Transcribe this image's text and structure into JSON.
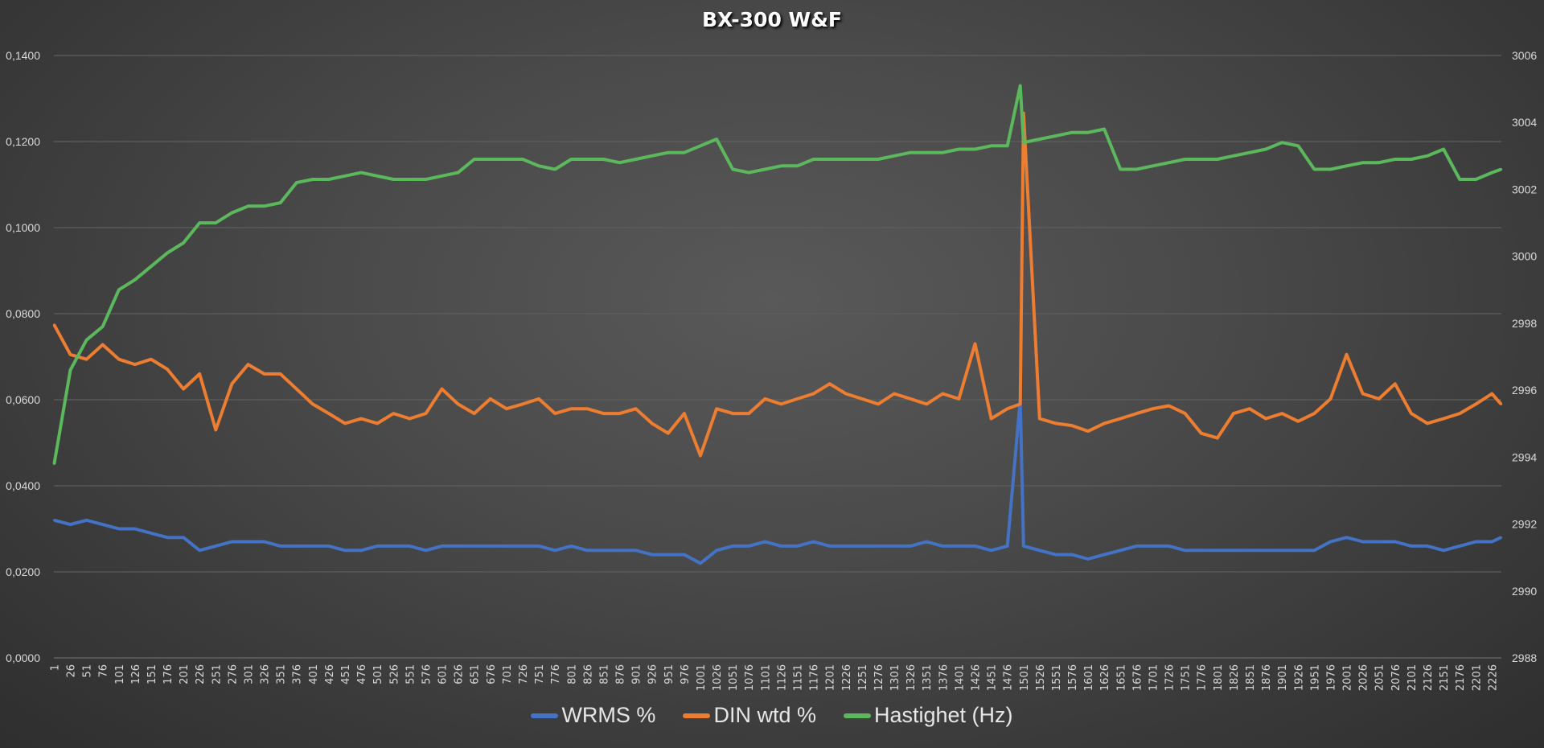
{
  "chart_data": {
    "type": "line",
    "title": "BX-300 W&F",
    "xlabel": "",
    "ylabel": "",
    "y_left": {
      "min": 0,
      "max": 0.14,
      "step": 0.02,
      "tick_labels": [
        "0,0000",
        "0,0200",
        "0,0400",
        "0,0600",
        "0,0800",
        "0,1000",
        "0,1200",
        "0,1400"
      ]
    },
    "y_right": {
      "min": 2988,
      "max": 3006,
      "step": 2,
      "tick_labels": [
        "2988",
        "2990",
        "2992",
        "2994",
        "2996",
        "2998",
        "3000",
        "3002",
        "3004",
        "3006"
      ]
    },
    "x_max": 2240,
    "x_tick_labels": [
      "1",
      "26",
      "51",
      "76",
      "101",
      "126",
      "151",
      "176",
      "201",
      "226",
      "251",
      "276",
      "301",
      "326",
      "351",
      "376",
      "401",
      "426",
      "451",
      "476",
      "501",
      "526",
      "551",
      "576",
      "601",
      "626",
      "651",
      "676",
      "701",
      "726",
      "751",
      "776",
      "801",
      "826",
      "851",
      "876",
      "901",
      "926",
      "951",
      "976",
      "1001",
      "1026",
      "1051",
      "1076",
      "1101",
      "1126",
      "1151",
      "1176",
      "1201",
      "1226",
      "1251",
      "1276",
      "1301",
      "1326",
      "1351",
      "1376",
      "1401",
      "1426",
      "1451",
      "1476",
      "1501",
      "1526",
      "1551",
      "1576",
      "1601",
      "1626",
      "1651",
      "1676",
      "1701",
      "1726",
      "1751",
      "1776",
      "1801",
      "1826",
      "1851",
      "1876",
      "1901",
      "1926",
      "1951",
      "1976",
      "2001",
      "2026",
      "2051",
      "2076",
      "2101",
      "2126",
      "2151",
      "2176",
      "2201",
      "2226"
    ],
    "grid": true,
    "legend_position": "bottom",
    "x": [
      1,
      26,
      51,
      76,
      101,
      126,
      151,
      176,
      201,
      226,
      251,
      276,
      301,
      326,
      351,
      376,
      401,
      426,
      451,
      476,
      501,
      526,
      551,
      576,
      601,
      626,
      651,
      676,
      701,
      726,
      751,
      776,
      801,
      826,
      851,
      876,
      901,
      926,
      951,
      976,
      1001,
      1026,
      1051,
      1076,
      1101,
      1126,
      1151,
      1176,
      1201,
      1226,
      1251,
      1276,
      1301,
      1326,
      1351,
      1376,
      1401,
      1426,
      1451,
      1476,
      1496,
      1501,
      1526,
      1551,
      1576,
      1601,
      1626,
      1651,
      1676,
      1701,
      1726,
      1751,
      1776,
      1801,
      1826,
      1851,
      1876,
      1901,
      1926,
      1951,
      1976,
      2001,
      2026,
      2051,
      2076,
      2101,
      2126,
      2151,
      2176,
      2201,
      2226,
      2240
    ],
    "series": [
      {
        "name": "WRMS %",
        "axis": "left",
        "color": "#4472c4",
        "values": [
          0.032,
          0.031,
          0.032,
          0.031,
          0.03,
          0.03,
          0.029,
          0.028,
          0.028,
          0.025,
          0.026,
          0.027,
          0.027,
          0.027,
          0.026,
          0.026,
          0.026,
          0.026,
          0.025,
          0.025,
          0.026,
          0.026,
          0.026,
          0.025,
          0.026,
          0.026,
          0.026,
          0.026,
          0.026,
          0.026,
          0.026,
          0.025,
          0.026,
          0.025,
          0.025,
          0.025,
          0.025,
          0.024,
          0.024,
          0.024,
          0.022,
          0.025,
          0.026,
          0.026,
          0.027,
          0.026,
          0.026,
          0.027,
          0.026,
          0.026,
          0.026,
          0.026,
          0.026,
          0.026,
          0.027,
          0.026,
          0.026,
          0.026,
          0.025,
          0.026,
          0.06,
          0.026,
          0.025,
          0.024,
          0.024,
          0.023,
          0.024,
          0.025,
          0.026,
          0.026,
          0.026,
          0.025,
          0.025,
          0.025,
          0.025,
          0.025,
          0.025,
          0.025,
          0.025,
          0.025,
          0.027,
          0.028,
          0.027,
          0.027,
          0.027,
          0.026,
          0.026,
          0.025,
          0.026,
          0.027,
          0.027,
          0.028
        ]
      },
      {
        "name": "DIN wtd %",
        "axis": "left",
        "color": "#ed7d31",
        "values": [
          0.0774,
          0.0705,
          0.0694,
          0.0728,
          0.0694,
          0.0682,
          0.0694,
          0.0671,
          0.0625,
          0.066,
          0.053,
          0.0637,
          0.0682,
          0.066,
          0.066,
          0.0625,
          0.059,
          0.0568,
          0.0545,
          0.0556,
          0.0545,
          0.0568,
          0.0556,
          0.0568,
          0.0625,
          0.059,
          0.0568,
          0.0602,
          0.0579,
          0.059,
          0.0602,
          0.0568,
          0.0579,
          0.0579,
          0.0568,
          0.0568,
          0.0579,
          0.0545,
          0.0522,
          0.0568,
          0.047,
          0.0579,
          0.0568,
          0.0568,
          0.0602,
          0.059,
          0.0602,
          0.0614,
          0.0637,
          0.0614,
          0.0602,
          0.059,
          0.0614,
          0.0602,
          0.059,
          0.0614,
          0.0602,
          0.073,
          0.0556,
          0.0579,
          0.059,
          0.1266,
          0.0556,
          0.0545,
          0.054,
          0.0527,
          0.0545,
          0.0556,
          0.0568,
          0.0579,
          0.0586,
          0.0568,
          0.0522,
          0.0511,
          0.0568,
          0.0579,
          0.0556,
          0.0568,
          0.055,
          0.0568,
          0.0602,
          0.0705,
          0.0614,
          0.0602,
          0.0637,
          0.0568,
          0.0545,
          0.0556,
          0.0568,
          0.059,
          0.0614,
          0.059
        ]
      },
      {
        "name": "Hastighet (Hz)",
        "axis": "right",
        "color": "#5cb85c",
        "values": [
          2993.8,
          2996.6,
          2997.5,
          2997.9,
          2999.0,
          2999.3,
          2999.7,
          3000.1,
          3000.4,
          3001.0,
          3001.0,
          3001.3,
          3001.5,
          3001.5,
          3001.6,
          3002.2,
          3002.3,
          3002.3,
          3002.4,
          3002.5,
          3002.4,
          3002.3,
          3002.3,
          3002.3,
          3002.4,
          3002.5,
          3002.9,
          3002.9,
          3002.9,
          3002.9,
          3002.7,
          3002.6,
          3002.9,
          3002.9,
          3002.9,
          3002.8,
          3002.9,
          3003.0,
          3003.1,
          3003.1,
          3003.3,
          3003.5,
          3002.6,
          3002.5,
          3002.6,
          3002.7,
          3002.7,
          3002.9,
          3002.9,
          3002.9,
          3002.9,
          3002.9,
          3003.0,
          3003.1,
          3003.1,
          3003.1,
          3003.2,
          3003.2,
          3003.3,
          3003.3,
          3005.1,
          3003.4,
          3003.5,
          3003.6,
          3003.7,
          3003.7,
          3003.8,
          3002.6,
          3002.6,
          3002.7,
          3002.8,
          3002.9,
          3002.9,
          3002.9,
          3003.0,
          3003.1,
          3003.2,
          3003.4,
          3003.3,
          3002.6,
          3002.6,
          3002.7,
          3002.8,
          3002.8,
          3002.9,
          3002.9,
          3003.0,
          3003.2,
          3002.3,
          3002.3,
          3002.5,
          3002.6
        ]
      }
    ]
  }
}
